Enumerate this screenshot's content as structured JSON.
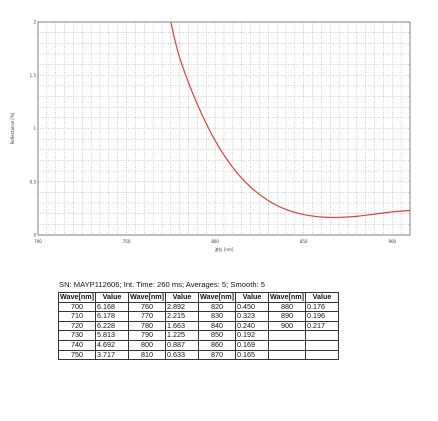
{
  "chart_data": {
    "type": "line",
    "xlabel": "波长 [nm]",
    "ylabel": "Reflectance [%]",
    "xlim": [
      700,
      910
    ],
    "ylim": [
      0,
      2
    ],
    "x_ticks": [
      "700",
      "750",
      "800",
      "850",
      "900"
    ],
    "y_ticks": [
      "2",
      "1.5",
      "1",
      "0.5",
      "0"
    ],
    "grid": true,
    "series": [
      {
        "color": "#e0403a",
        "x": [
          775,
          780,
          790,
          800,
          810,
          820,
          830,
          840,
          850,
          860,
          870,
          880,
          890,
          900,
          910
        ],
        "y": [
          2.0,
          1.663,
          1.225,
          0.887,
          0.633,
          0.45,
          0.323,
          0.24,
          0.192,
          0.169,
          0.165,
          0.176,
          0.196,
          0.217,
          0.23
        ]
      }
    ]
  },
  "info_line": "SN: MAYP112606; Int. Time: 260 ms; Averages: 5; Smooth: 5",
  "table": {
    "headers": [
      "Wave[nm]",
      "Value",
      "Wave[nm]",
      "Value",
      "Wave[nm]",
      "Value",
      "Wave[nm]",
      "Value"
    ],
    "rows": [
      [
        "700",
        "6.168",
        "760",
        "2.892",
        "820",
        "0.450",
        "880",
        "0.176"
      ],
      [
        "710",
        "6.178",
        "770",
        "2.215",
        "830",
        "0.323",
        "890",
        "0.196"
      ],
      [
        "720",
        "6.228",
        "780",
        "1.663",
        "840",
        "0.240",
        "900",
        "0.217"
      ],
      [
        "730",
        "5.813",
        "790",
        "1.225",
        "850",
        "0.192",
        "",
        ""
      ],
      [
        "740",
        "4.692",
        "800",
        "0.887",
        "860",
        "0.169",
        "",
        ""
      ],
      [
        "750",
        "3.717",
        "810",
        "0.633",
        "870",
        "0.165",
        "",
        ""
      ]
    ]
  }
}
